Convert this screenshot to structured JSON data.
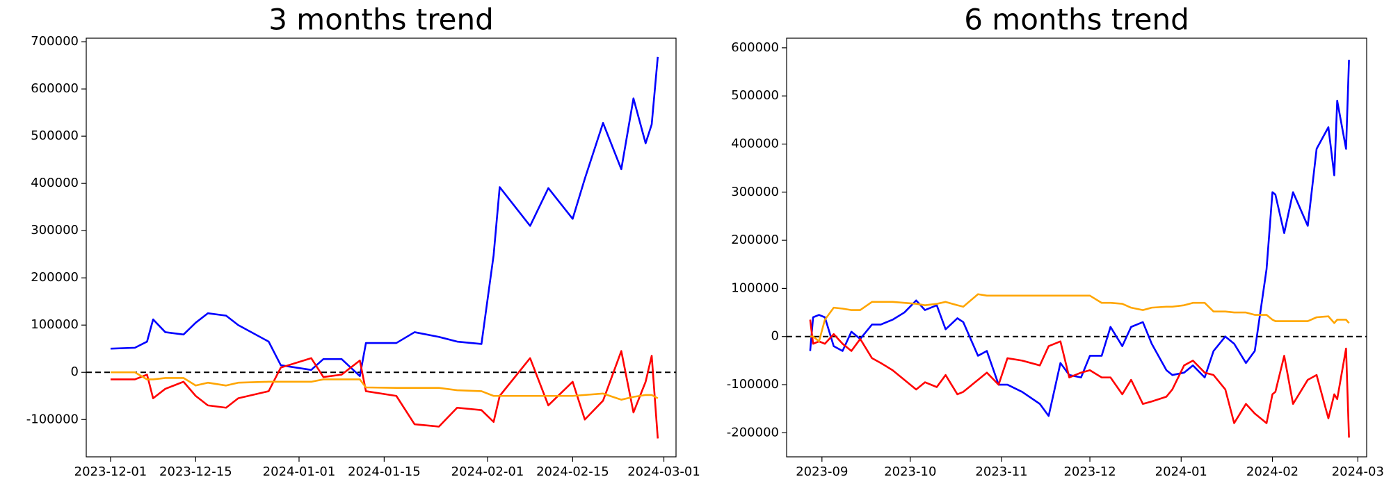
{
  "chart_data": [
    {
      "type": "line",
      "title": "3 months trend",
      "x": [
        "2023-12-01",
        "2023-12-05",
        "2023-12-07",
        "2023-12-08",
        "2023-12-10",
        "2023-12-13",
        "2023-12-15",
        "2023-12-17",
        "2023-12-20",
        "2023-12-22",
        "2023-12-27",
        "2023-12-29",
        "2024-01-03",
        "2024-01-05",
        "2024-01-08",
        "2024-01-11",
        "2024-01-12",
        "2024-01-17",
        "2024-01-20",
        "2024-01-24",
        "2024-01-27",
        "2024-01-31",
        "2024-02-02",
        "2024-02-03",
        "2024-02-08",
        "2024-02-11",
        "2024-02-15",
        "2024-02-17",
        "2024-02-20",
        "2024-02-23",
        "2024-02-25",
        "2024-02-27",
        "2024-02-28",
        "2024-02-29"
      ],
      "series": [
        {
          "color": "#0000ff",
          "values": [
            50000,
            52000,
            65000,
            112000,
            85000,
            80000,
            105000,
            125000,
            120000,
            100000,
            65000,
            15000,
            5000,
            28000,
            28000,
            -8000,
            62000,
            62000,
            85000,
            75000,
            65000,
            60000,
            248000,
            392000,
            310000,
            390000,
            325000,
            410000,
            528000,
            430000,
            580000,
            485000,
            525000,
            668000
          ]
        },
        {
          "color": "#ff0000",
          "values": [
            -15000,
            -15000,
            -5000,
            -55000,
            -35000,
            -20000,
            -50000,
            -70000,
            -75000,
            -55000,
            -40000,
            10000,
            30000,
            -10000,
            -5000,
            25000,
            -40000,
            -50000,
            -110000,
            -115000,
            -75000,
            -80000,
            -105000,
            -50000,
            30000,
            -70000,
            -20000,
            -100000,
            -60000,
            45000,
            -85000,
            -20000,
            35000,
            -140000
          ]
        },
        {
          "color": "#ffa500",
          "values": [
            0,
            0,
            -15000,
            -15000,
            -12000,
            -12000,
            -28000,
            -22000,
            -28000,
            -22000,
            -20000,
            -20000,
            -20000,
            -15000,
            -15000,
            -15000,
            -32000,
            -33000,
            -33000,
            -33000,
            -38000,
            -40000,
            -50000,
            -50000,
            -50000,
            -50000,
            -50000,
            -48000,
            -45000,
            -58000,
            -52000,
            -48000,
            -48000,
            -55000
          ]
        }
      ],
      "xlim": [
        "2023-11-27",
        "2024-03-03"
      ],
      "xticks": [
        "2023-12-01",
        "2023-12-15",
        "2024-01-01",
        "2024-01-15",
        "2024-02-01",
        "2024-02-15",
        "2024-03-01"
      ],
      "ylim": [
        -179000,
        707500
      ],
      "yticks": [
        -100000,
        0,
        100000,
        200000,
        300000,
        400000,
        500000,
        600000,
        700000
      ],
      "hline": {
        "y": 0,
        "color": "#000000",
        "style": "dashed"
      }
    },
    {
      "type": "line",
      "title": "6 months trend",
      "x": [
        "2023-08-28",
        "2023-08-29",
        "2023-08-31",
        "2023-09-02",
        "2023-09-05",
        "2023-09-08",
        "2023-09-11",
        "2023-09-14",
        "2023-09-18",
        "2023-09-21",
        "2023-09-25",
        "2023-09-29",
        "2023-10-03",
        "2023-10-06",
        "2023-10-10",
        "2023-10-13",
        "2023-10-17",
        "2023-10-19",
        "2023-10-24",
        "2023-10-27",
        "2023-10-31",
        "2023-11-03",
        "2023-11-08",
        "2023-11-14",
        "2023-11-17",
        "2023-11-21",
        "2023-11-24",
        "2023-11-28",
        "2023-12-01",
        "2023-12-05",
        "2023-12-08",
        "2023-12-12",
        "2023-12-15",
        "2023-12-19",
        "2023-12-22",
        "2023-12-27",
        "2023-12-29",
        "2024-01-02",
        "2024-01-05",
        "2024-01-09",
        "2024-01-12",
        "2024-01-16",
        "2024-01-19",
        "2024-01-23",
        "2024-01-26",
        "2024-01-30",
        "2024-02-01",
        "2024-02-02",
        "2024-02-05",
        "2024-02-08",
        "2024-02-13",
        "2024-02-16",
        "2024-02-20",
        "2024-02-22",
        "2024-02-23",
        "2024-02-26",
        "2024-02-27"
      ],
      "series": [
        {
          "color": "#0000ff",
          "values": [
            -30000,
            40000,
            45000,
            40000,
            -20000,
            -30000,
            10000,
            -5000,
            25000,
            25000,
            35000,
            50000,
            75000,
            55000,
            65000,
            15000,
            38000,
            30000,
            -40000,
            -30000,
            -100000,
            -100000,
            -115000,
            -140000,
            -165000,
            -55000,
            -80000,
            -85000,
            -40000,
            -40000,
            20000,
            -20000,
            20000,
            30000,
            -15000,
            -70000,
            -80000,
            -75000,
            -60000,
            -85000,
            -30000,
            0,
            -15000,
            -55000,
            -30000,
            140000,
            300000,
            295000,
            215000,
            300000,
            230000,
            390000,
            435000,
            335000,
            490000,
            390000,
            575000
          ]
        },
        {
          "color": "#ff0000",
          "values": [
            35000,
            -15000,
            -10000,
            -15000,
            5000,
            -15000,
            -30000,
            -5000,
            -45000,
            -55000,
            -70000,
            -90000,
            -110000,
            -95000,
            -105000,
            -80000,
            -120000,
            -115000,
            -90000,
            -75000,
            -100000,
            -45000,
            -50000,
            -60000,
            -20000,
            -10000,
            -85000,
            -75000,
            -70000,
            -85000,
            -85000,
            -120000,
            -90000,
            -140000,
            -135000,
            -125000,
            -110000,
            -60000,
            -50000,
            -75000,
            -80000,
            -110000,
            -180000,
            -140000,
            -160000,
            -180000,
            -120000,
            -115000,
            -40000,
            -140000,
            -90000,
            -80000,
            -170000,
            -120000,
            -130000,
            -25000,
            -210000
          ]
        },
        {
          "color": "#ffa500",
          "values": [
            0,
            0,
            -10000,
            35000,
            60000,
            58000,
            55000,
            55000,
            72000,
            72000,
            72000,
            70000,
            68000,
            65000,
            68000,
            72000,
            65000,
            62000,
            88000,
            85000,
            85000,
            85000,
            85000,
            85000,
            85000,
            85000,
            85000,
            85000,
            85000,
            70000,
            70000,
            68000,
            60000,
            55000,
            60000,
            62000,
            62000,
            65000,
            70000,
            70000,
            52000,
            52000,
            50000,
            50000,
            45000,
            45000,
            35000,
            32000,
            32000,
            32000,
            32000,
            40000,
            42000,
            28000,
            35000,
            35000,
            28000
          ]
        }
      ],
      "xlim": [
        "2023-08-20",
        "2024-03-04"
      ],
      "xticks": [
        {
          "value": "2023-09-01",
          "label": "2023-09"
        },
        {
          "value": "2023-10-01",
          "label": "2023-10"
        },
        {
          "value": "2023-11-01",
          "label": "2023-11"
        },
        {
          "value": "2023-12-01",
          "label": "2023-12"
        },
        {
          "value": "2024-01-01",
          "label": "2024-01"
        },
        {
          "value": "2024-02-01",
          "label": "2024-02"
        },
        {
          "value": "2024-03-01",
          "label": "2024-03"
        }
      ],
      "ylim": [
        -250000,
        620000
      ],
      "yticks": [
        -200000,
        -100000,
        0,
        100000,
        200000,
        300000,
        400000,
        500000,
        600000
      ],
      "hline": {
        "y": 0,
        "color": "#000000",
        "style": "dashed"
      }
    }
  ]
}
